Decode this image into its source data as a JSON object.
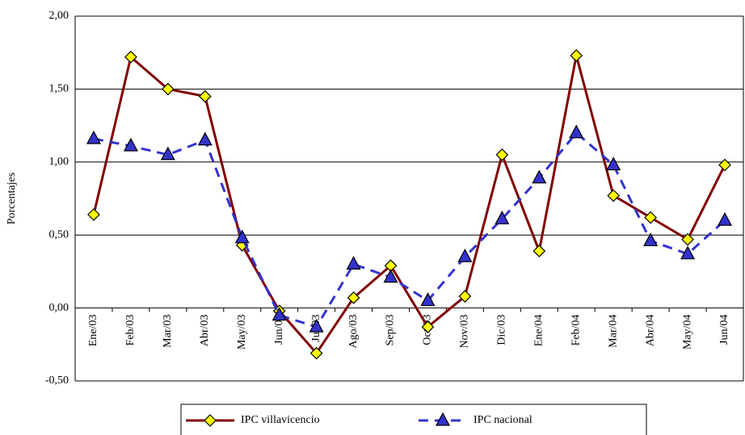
{
  "chart_data": {
    "type": "line",
    "y_label": "Porcentajes",
    "categories": [
      "Ene/03",
      "Feb/03",
      "Mar/03",
      "Abr/03",
      "May/03",
      "Jun/03",
      "Jul/03",
      "Ago/03",
      "Sep/03",
      "Oct/03",
      "Nov/03",
      "Dic/03",
      "Ene/04",
      "Feb/04",
      "Mar/04",
      "Abr/04",
      "May/04",
      "Jun/04"
    ],
    "series": [
      {
        "name": "IPC villavicencio",
        "color": "#800000",
        "marker_color": "#ffff00",
        "marker": "diamond",
        "dashed": false,
        "values": [
          0.64,
          1.72,
          1.5,
          1.45,
          0.43,
          -0.02,
          -0.31,
          0.07,
          0.29,
          -0.13,
          0.08,
          1.05,
          0.39,
          1.73,
          0.77,
          0.62,
          0.47,
          0.98
        ]
      },
      {
        "name": "IPC nacional",
        "color": "#3333cc",
        "marker_color": "#3333cc",
        "marker": "triangle",
        "dashed": true,
        "values": [
          1.16,
          1.11,
          1.05,
          1.15,
          0.48,
          -0.05,
          -0.13,
          0.3,
          0.21,
          0.05,
          0.35,
          0.61,
          0.89,
          1.2,
          0.98,
          0.46,
          0.37,
          0.6
        ]
      }
    ],
    "ylim": [
      -0.5,
      2
    ],
    "yticks": [
      {
        "value": -0.5,
        "label": "-0,50"
      },
      {
        "value": 0,
        "label": "0,00"
      },
      {
        "value": 0.5,
        "label": "0,50"
      },
      {
        "value": 1,
        "label": "1,00"
      },
      {
        "value": 1.5,
        "label": "1,50"
      },
      {
        "value": 2,
        "label": "2,00"
      }
    ],
    "grid": true,
    "legend": "bottom"
  }
}
